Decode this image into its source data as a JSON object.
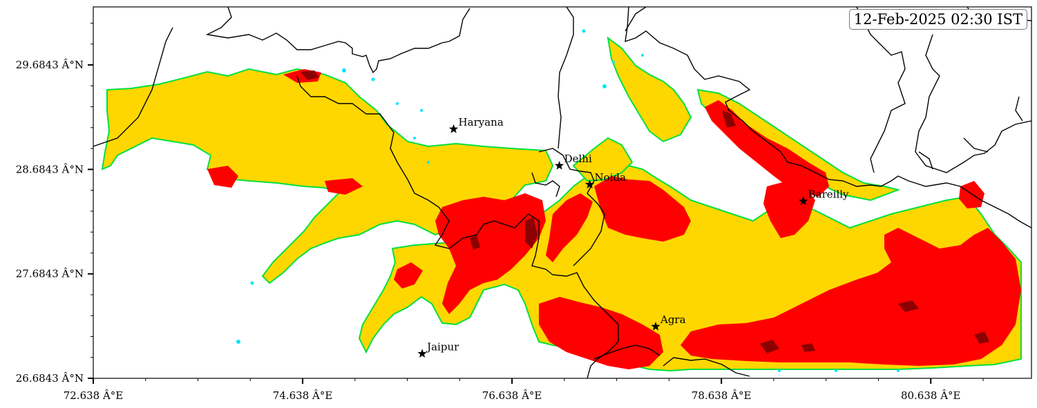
{
  "timestamp": "12-Feb-2025 02:30 IST",
  "axes": {
    "x_ticks": [
      {
        "value": 72.638,
        "label": "72.638 Â°E"
      },
      {
        "value": 74.638,
        "label": "74.638 Â°E"
      },
      {
        "value": 76.638,
        "label": "76.638 Â°E"
      },
      {
        "value": 78.638,
        "label": "78.638 Â°E"
      },
      {
        "value": 80.638,
        "label": "80.638 Â°E"
      }
    ],
    "y_ticks": [
      {
        "value": 29.6843,
        "label": "29.6843 Â°N"
      },
      {
        "value": 28.6843,
        "label": "28.6843 Â°N"
      },
      {
        "value": 27.6843,
        "label": "27.6843 Â°N"
      },
      {
        "value": 26.6843,
        "label": "26.6843 Â°N"
      }
    ],
    "lon_range": [
      72.638,
      81.6
    ],
    "lat_range": [
      26.6843,
      30.24
    ]
  },
  "cities": [
    {
      "name": "Haryana",
      "lon": 76.08,
      "lat": 29.07
    },
    {
      "name": "Delhi",
      "lon": 77.09,
      "lat": 28.72
    },
    {
      "name": "Noida",
      "lon": 77.38,
      "lat": 28.54
    },
    {
      "name": "Bareilly",
      "lon": 79.42,
      "lat": 28.38
    },
    {
      "name": "Agra",
      "lon": 78.01,
      "lat": 27.18
    },
    {
      "name": "Jaipur",
      "lon": 75.78,
      "lat": 26.92
    }
  ],
  "colors": {
    "outline_cyan": "#00e5ff",
    "outline_green": "#00e040",
    "level_yellow": "#ffd700",
    "level_red": "#ff0000",
    "level_darkred": "#8b0000",
    "boundary": "#000000"
  }
}
